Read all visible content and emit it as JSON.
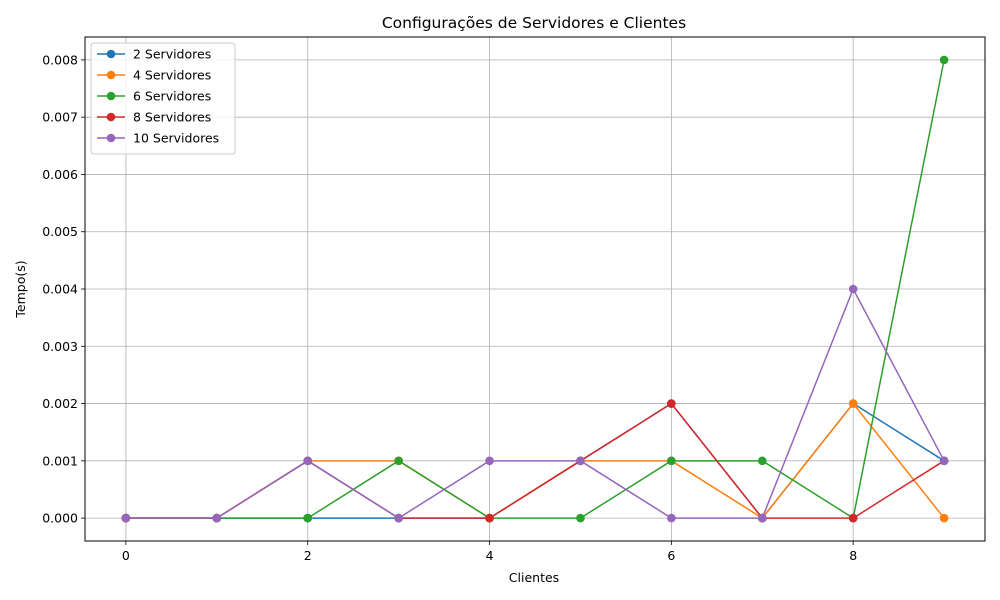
{
  "chart_data": {
    "type": "line",
    "title": "Configurações de Servidores e Clientes",
    "xlabel": "Clientes",
    "ylabel": "Tempo(s)",
    "xlim": [
      -0.45,
      9.45
    ],
    "ylim": [
      -0.0004,
      0.0084
    ],
    "x": [
      0,
      1,
      2,
      3,
      4,
      5,
      6,
      7,
      8,
      9
    ],
    "xticks": [
      0,
      2,
      4,
      6,
      8
    ],
    "xtick_labels": [
      "0",
      "2",
      "4",
      "6",
      "8"
    ],
    "yticks": [
      0,
      0.001,
      0.002,
      0.003,
      0.004,
      0.005,
      0.006,
      0.007,
      0.008
    ],
    "ytick_labels": [
      "0.000",
      "0.001",
      "0.002",
      "0.003",
      "0.004",
      "0.005",
      "0.006",
      "0.007",
      "0.008"
    ],
    "grid": true,
    "legend_position": "top-left",
    "series": [
      {
        "name": "2 Servidores",
        "color": "#1f77b4",
        "values": [
          0,
          0,
          0,
          0,
          0,
          0.001,
          0.002,
          0,
          0.002,
          0.001
        ]
      },
      {
        "name": "4 Servidores",
        "color": "#ff7f0e",
        "values": [
          0,
          0,
          0.001,
          0.001,
          0,
          0.001,
          0.001,
          0,
          0.002,
          0
        ]
      },
      {
        "name": "6 Servidores",
        "color": "#2ca02c",
        "values": [
          0,
          0,
          0,
          0.001,
          0,
          0,
          0.001,
          0.001,
          0,
          0.008
        ]
      },
      {
        "name": "8 Servidores",
        "color": "#d62728",
        "values": [
          0,
          0,
          0.001,
          0,
          0,
          0.001,
          0.002,
          0,
          0,
          0.001
        ]
      },
      {
        "name": "10 Servidores",
        "color": "#9467bd",
        "values": [
          0,
          0,
          0.001,
          0,
          0.001,
          0.001,
          0,
          0,
          0.004,
          0.001
        ]
      }
    ]
  }
}
